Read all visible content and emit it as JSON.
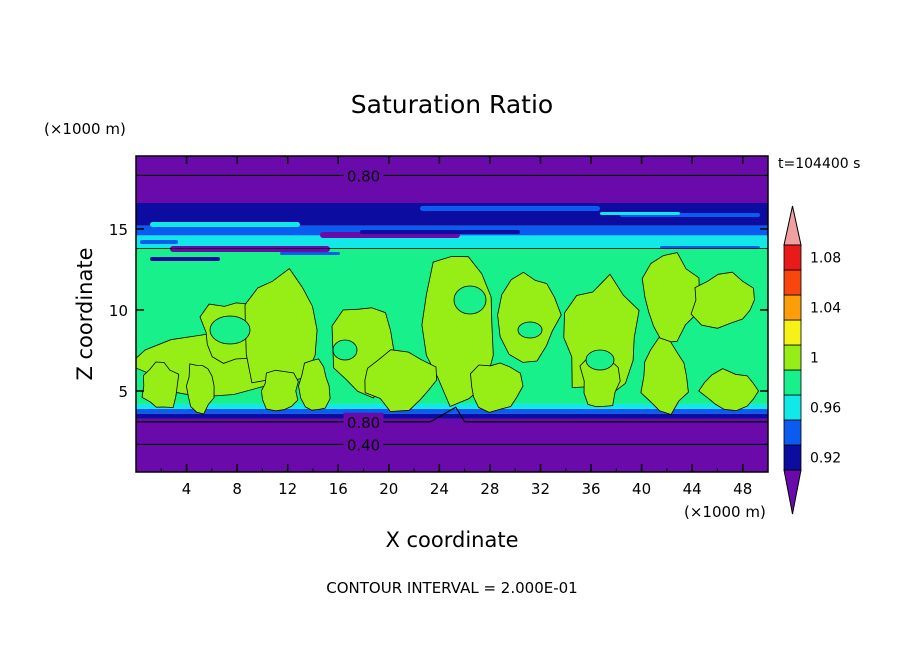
{
  "chart_data": {
    "type": "heatmap",
    "title": "Saturation Ratio",
    "xlabel": "X coordinate",
    "ylabel": "Z coordinate",
    "x_unit": "(×1000 m)",
    "y_unit": "(×1000 m)",
    "time_label": "t=104400 s",
    "footer": "CONTOUR INTERVAL = 2.000E-01",
    "xlim": [
      0,
      50
    ],
    "ylim": [
      0,
      19.5
    ],
    "x_ticks": [
      4,
      8,
      12,
      16,
      20,
      24,
      28,
      32,
      36,
      40,
      44,
      48
    ],
    "y_ticks": [
      5,
      10,
      15
    ],
    "grid": false,
    "contour_labels": [
      {
        "text": "0.80",
        "x": 18,
        "z": 18.3
      },
      {
        "text": "0.80",
        "x": 18,
        "z": 3.1
      },
      {
        "text": "0.40",
        "x": 18,
        "z": 1.7
      }
    ],
    "colorbar": {
      "labels": [
        "0.92",
        "0.96",
        "1",
        "1.04",
        "1.08"
      ],
      "bins": [
        {
          "color": "#6a0aaa"
        },
        {
          "color": "#0c0ca0"
        },
        {
          "color": "#0a5cf0"
        },
        {
          "color": "#12e8e8"
        },
        {
          "color": "#18f08c"
        },
        {
          "color": "#96ee16"
        },
        {
          "color": "#f6f216"
        },
        {
          "color": "#fc9e0a"
        },
        {
          "color": "#f8460e"
        },
        {
          "color": "#e81a1a"
        },
        {
          "color": "#f0a0a0"
        }
      ]
    },
    "bands": [
      {
        "z0": 0,
        "z1": 3.3,
        "color": "#6a0aaa"
      },
      {
        "z0": 3.3,
        "z1": 3.6,
        "color": "#0c0ca0"
      },
      {
        "z0": 3.6,
        "z1": 3.9,
        "color": "#0a5cf0"
      },
      {
        "z0": 3.9,
        "z1": 4.2,
        "color": "#12e8e8"
      },
      {
        "z0": 4.2,
        "z1": 13.8,
        "color": "#18f08c"
      },
      {
        "z0": 13.8,
        "z1": 14.6,
        "color": "#12e8e8"
      },
      {
        "z0": 14.6,
        "z1": 15.2,
        "color": "#0a5cf0"
      },
      {
        "z0": 15.2,
        "z1": 16.6,
        "color": "#0c0ca0"
      },
      {
        "z0": 16.6,
        "z1": 19.5,
        "color": "#6a0aaa"
      }
    ]
  }
}
